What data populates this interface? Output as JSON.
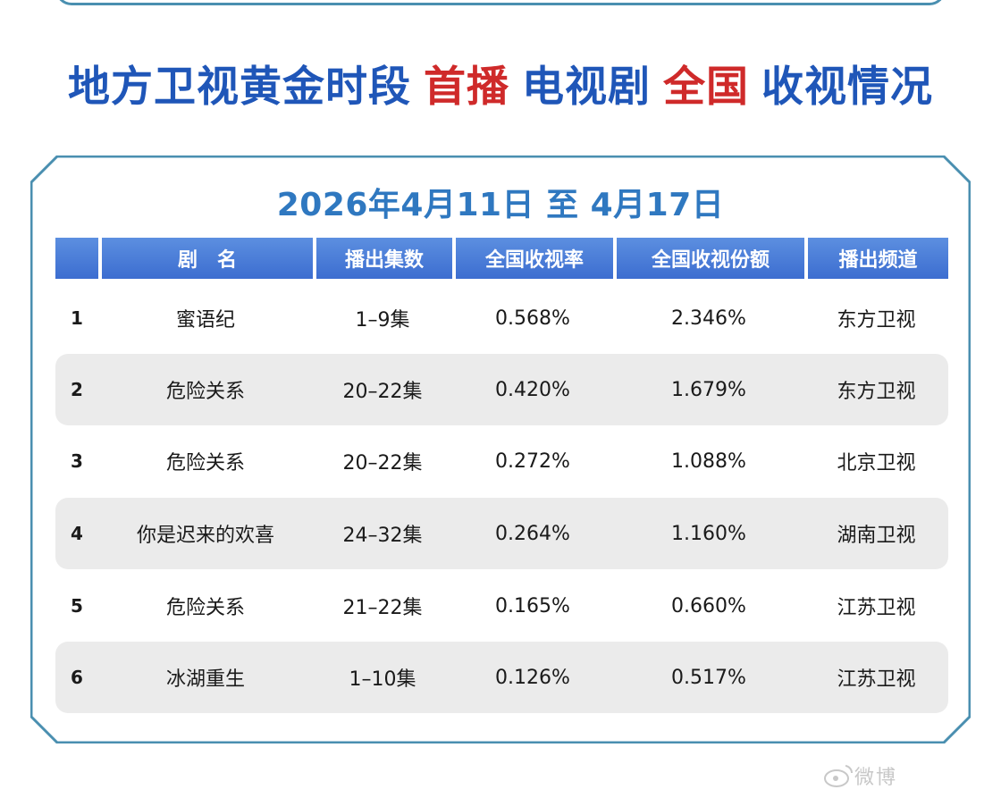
{
  "headline": {
    "part1": "地方卫视黄金时段",
    "part2": "首播",
    "part3": "电视剧",
    "part4": "全国",
    "part5": "收视情况"
  },
  "date_range": "2026年4月11日 至 4月17日",
  "table": {
    "headers": [
      "",
      "剧　名",
      "播出集数",
      "全国收视率",
      "全国收视份额",
      "播出频道"
    ],
    "rows": [
      {
        "rank": "1",
        "title": "蜜语纪",
        "episodes": "1–9集",
        "rating": "0.568%",
        "share": "2.346%",
        "channel": "东方卫视"
      },
      {
        "rank": "2",
        "title": "危险关系",
        "episodes": "20–22集",
        "rating": "0.420%",
        "share": "1.679%",
        "channel": "东方卫视"
      },
      {
        "rank": "3",
        "title": "危险关系",
        "episodes": "20–22集",
        "rating": "0.272%",
        "share": "1.088%",
        "channel": "北京卫视"
      },
      {
        "rank": "4",
        "title": "你是迟来的欢喜",
        "episodes": "24–32集",
        "rating": "0.264%",
        "share": "1.160%",
        "channel": "湖南卫视"
      },
      {
        "rank": "5",
        "title": "危险关系",
        "episodes": "21–22集",
        "rating": "0.165%",
        "share": "0.660%",
        "channel": "江苏卫视"
      },
      {
        "rank": "6",
        "title": "冰湖重生",
        "episodes": "1–10集",
        "rating": "0.126%",
        "share": "0.517%",
        "channel": "江苏卫视"
      }
    ]
  },
  "colors": {
    "headline_blue": "#1f56b8",
    "headline_red": "#cf2a2a",
    "date_blue": "#2f78c0",
    "frame": "#4a8fb0",
    "header_blue": "#4a7bd8",
    "row_shade": "#ebebeb"
  },
  "watermark": "微博"
}
